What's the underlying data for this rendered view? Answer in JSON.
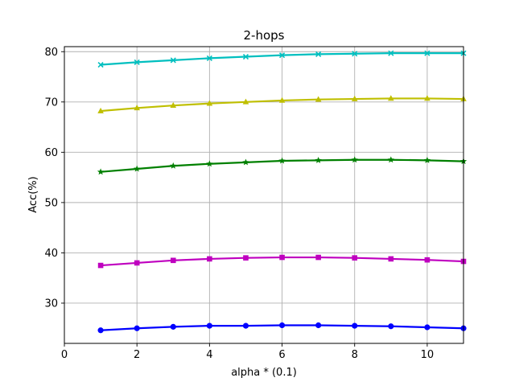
{
  "chart_data": {
    "type": "line",
    "title": "2-hops",
    "xlabel": "alpha * (0.1)",
    "ylabel": "Acc(%)",
    "xlim": [
      0,
      11
    ],
    "ylim": [
      22,
      81
    ],
    "xticks": [
      0,
      2,
      4,
      6,
      8,
      10
    ],
    "yticks": [
      30,
      40,
      50,
      60,
      70,
      80
    ],
    "grid": true,
    "x": [
      1,
      2,
      3,
      4,
      5,
      6,
      7,
      8,
      9,
      10,
      11
    ],
    "series": [
      {
        "color": "#00bfbf",
        "marker": "x",
        "values": [
          77.4,
          77.9,
          78.3,
          78.7,
          79.0,
          79.3,
          79.5,
          79.6,
          79.7,
          79.7,
          79.7
        ]
      },
      {
        "color": "#bfbf00",
        "marker": "triangle",
        "values": [
          68.2,
          68.8,
          69.3,
          69.7,
          70.0,
          70.3,
          70.5,
          70.6,
          70.7,
          70.7,
          70.6
        ]
      },
      {
        "color": "#008000",
        "marker": "star",
        "values": [
          56.1,
          56.7,
          57.3,
          57.7,
          58.0,
          58.3,
          58.4,
          58.5,
          58.5,
          58.4,
          58.2
        ]
      },
      {
        "color": "#bf00bf",
        "marker": "square",
        "values": [
          37.5,
          38.0,
          38.5,
          38.8,
          39.0,
          39.1,
          39.1,
          39.0,
          38.8,
          38.6,
          38.3
        ]
      },
      {
        "color": "#0000ff",
        "marker": "circle",
        "values": [
          24.6,
          25.0,
          25.3,
          25.5,
          25.5,
          25.6,
          25.6,
          25.5,
          25.4,
          25.2,
          25.0
        ]
      }
    ]
  }
}
